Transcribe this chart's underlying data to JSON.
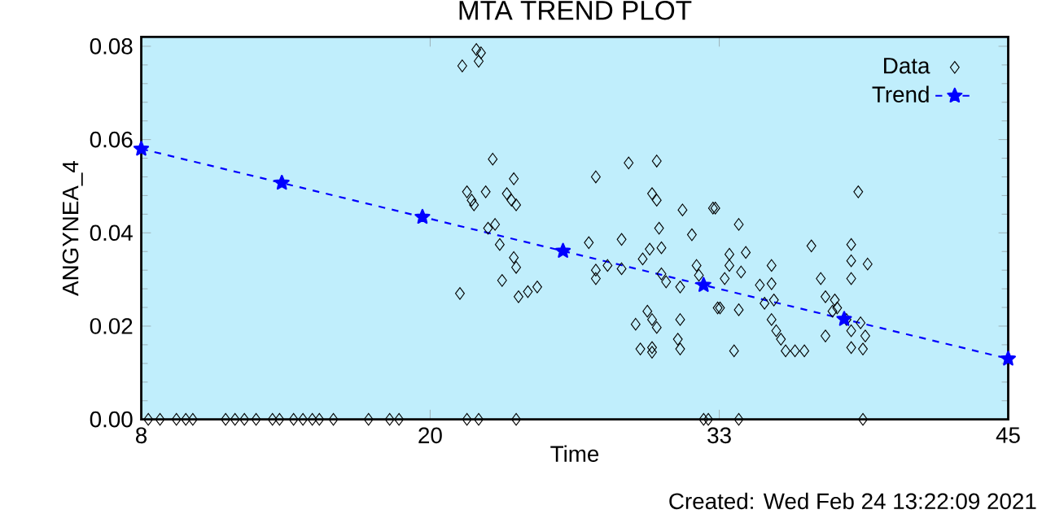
{
  "chart_data": {
    "type": "scatter",
    "title": "MTA TREND PLOT",
    "xlabel": "Time",
    "ylabel": "ANGYNEA_4",
    "annotations": [
      "Created: Wed Feb 24 13:22:09 2021"
    ],
    "xlim": [
      8,
      45
    ],
    "xticks": [
      8,
      {
        "value": 20.33,
        "label": "20"
      },
      {
        "value": 32.67,
        "label": "33"
      },
      45
    ],
    "ylim": [
      0,
      0.082
    ],
    "yticks": [
      {
        "value": 0,
        "label": "0.00"
      },
      {
        "value": 0.02,
        "label": "0.02"
      },
      {
        "value": 0.04,
        "label": "0.04"
      },
      {
        "value": 0.06,
        "label": "0.06"
      },
      {
        "value": 0.08,
        "label": "0.08"
      }
    ],
    "grid": false,
    "legend": "top right",
    "series": [
      {
        "name": "Data",
        "type": "scatter",
        "marker": "diamond",
        "color": "#000000",
        "x": [
          8.3,
          8.8,
          9.5,
          9.9,
          10.2,
          11.6,
          12.0,
          12.4,
          12.9,
          13.6,
          13.9,
          14.5,
          14.9,
          15.3,
          15.6,
          16.2,
          17.7,
          18.6,
          19.0,
          21.9,
          22.4,
          24.0,
          32.0,
          32.2,
          33.5,
          38.8,
          21.7,
          22.3,
          22.4,
          22.5,
          23.0,
          23.9,
          21.9,
          22.1,
          22.2,
          22.7,
          23.6,
          23.8,
          24.0,
          23.1,
          22.8,
          23.3,
          23.9,
          24.0,
          23.4,
          21.6,
          24.1,
          24.5,
          24.9,
          27.4,
          28.8,
          30.0,
          27.1,
          27.4,
          27.4,
          27.9,
          28.5,
          28.5,
          29.8,
          30.0,
          30.1,
          31.5,
          31.1,
          32.4,
          29.7,
          30.2,
          29.4,
          30.2,
          30.4,
          31.0,
          31.7,
          31.8,
          32.6,
          29.6,
          29.8,
          29.1,
          30.0,
          31.0,
          29.3,
          29.8,
          29.8,
          30.9,
          31.0,
          32.5,
          33.5,
          33.1,
          33.8,
          33.1,
          33.6,
          32.9,
          34.9,
          32.7,
          33.5,
          33.3,
          34.4,
          34.9,
          34.6,
          35.0,
          34.9,
          35.1,
          35.3,
          35.5,
          35.9,
          36.3,
          36.6,
          37.0,
          37.2,
          37.2,
          37.6,
          38.6,
          38.3,
          38.3,
          39.0,
          38.3,
          37.7,
          38.1,
          38.3,
          38.7,
          38.9,
          38.3,
          38.8,
          37.5
        ],
        "values": [
          0,
          0,
          0,
          0,
          0,
          0,
          0,
          0,
          0,
          0,
          0,
          0,
          0,
          0,
          0,
          0,
          0,
          0,
          0,
          0,
          0,
          0,
          0,
          0,
          0,
          0,
          0.0758,
          0.0793,
          0.0768,
          0.0786,
          0.0558,
          0.0516,
          0.0488,
          0.047,
          0.046,
          0.0488,
          0.0484,
          0.047,
          0.046,
          0.0418,
          0.041,
          0.0375,
          0.0347,
          0.0326,
          0.0298,
          0.027,
          0.0263,
          0.0274,
          0.0284,
          0.052,
          0.055,
          0.0554,
          0.0379,
          0.032,
          0.0302,
          0.033,
          0.0323,
          0.0386,
          0.0484,
          0.047,
          0.041,
          0.0396,
          0.0449,
          0.0453,
          0.0365,
          0.0368,
          0.0344,
          0.0312,
          0.0295,
          0.0284,
          0.033,
          0.0309,
          0.0239,
          0.0232,
          0.0214,
          0.0204,
          0.0197,
          0.0214,
          0.0151,
          0.0144,
          0.0154,
          0.0172,
          0.0151,
          0.0453,
          0.0418,
          0.0354,
          0.0358,
          0.033,
          0.0316,
          0.0302,
          0.033,
          0.0239,
          0.0235,
          0.0147,
          0.0288,
          0.0291,
          0.0249,
          0.0256,
          0.0214,
          0.019,
          0.0172,
          0.0147,
          0.0147,
          0.0147,
          0.0372,
          0.0302,
          0.0263,
          0.0179,
          0.0256,
          0.0488,
          0.0375,
          0.034,
          0.0333,
          0.0302,
          0.0239,
          0.0214,
          0.019,
          0.0207,
          0.0179,
          0.0154,
          0.0151,
          0.0232
        ]
      },
      {
        "name": "Trend",
        "type": "line",
        "marker": "star",
        "line_style": "dashed",
        "color": "#0000ff",
        "x": [
          8,
          14,
          20,
          26,
          32,
          38,
          45
        ],
        "values": [
          0.058,
          0.0507,
          0.0434,
          0.0361,
          0.0288,
          0.0215,
          0.013
        ]
      }
    ]
  }
}
